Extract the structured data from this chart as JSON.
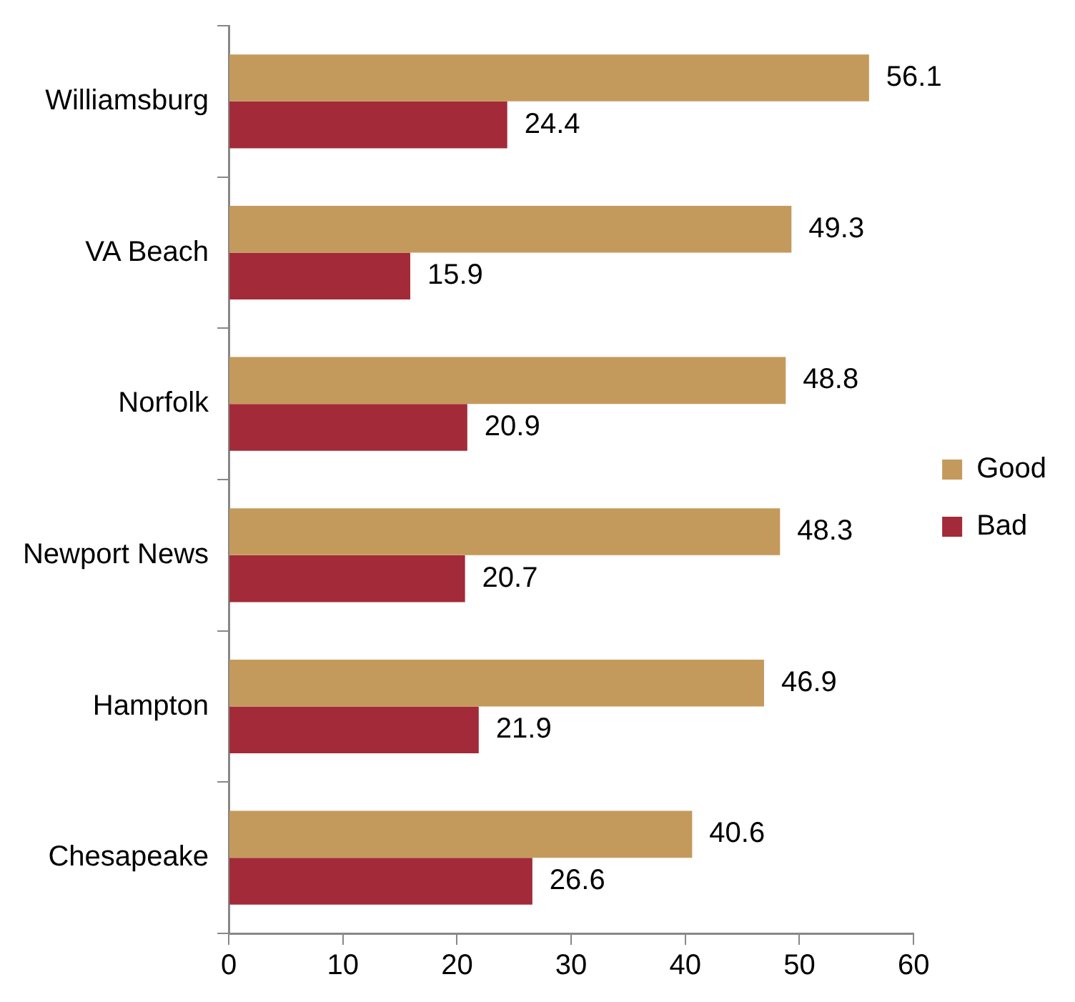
{
  "chart_data": {
    "type": "bar",
    "orientation": "horizontal",
    "categories": [
      "Williamsburg",
      "VA Beach",
      "Norfolk",
      "Newport News",
      "Hampton",
      "Chesapeake"
    ],
    "series": [
      {
        "name": "Good",
        "color": "#c49a5c",
        "values": [
          56.1,
          49.3,
          48.8,
          48.3,
          46.9,
          40.6
        ]
      },
      {
        "name": "Bad",
        "color": "#a32a38",
        "values": [
          24.4,
          15.9,
          20.9,
          20.7,
          21.9,
          26.6
        ]
      }
    ],
    "xlim": [
      0,
      60
    ],
    "xticks": [
      0,
      10,
      20,
      30,
      40,
      50,
      60
    ],
    "grid": false,
    "legend": "right",
    "data_labels": true
  }
}
